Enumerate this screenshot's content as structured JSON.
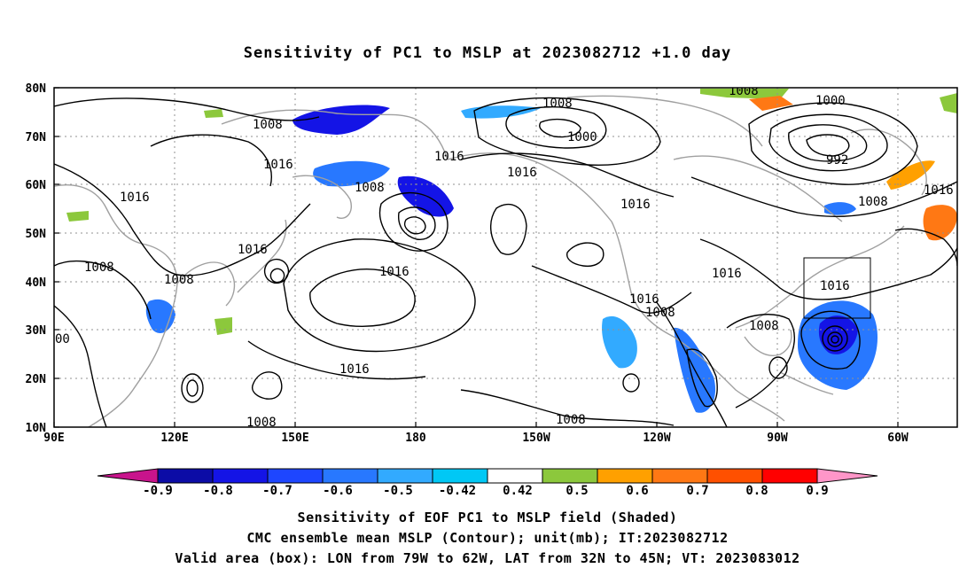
{
  "title": "Sensitivity of PC1 to MSLP at 2023082712 +1.0 day",
  "map": {
    "lat_labels": [
      "80N",
      "70N",
      "60N",
      "50N",
      "40N",
      "30N",
      "20N",
      "10N"
    ],
    "lon_labels": [
      "90E",
      "120E",
      "150E",
      "180",
      "150W",
      "120W",
      "90W",
      "60W"
    ],
    "contour_labels": [
      {
        "text": "1008",
        "pos": "nw-pacific"
      },
      {
        "text": "1016",
        "pos": "kamchatka"
      },
      {
        "text": "1008",
        "pos": "okhotsk"
      },
      {
        "text": "1016",
        "pos": "siberia"
      },
      {
        "text": "1016",
        "pos": "china-north"
      },
      {
        "text": "1008",
        "pos": "china"
      },
      {
        "text": "1016",
        "pos": "japan"
      },
      {
        "text": "1008",
        "pos": "south-china"
      },
      {
        "text": "00",
        "pos": "west-edge"
      },
      {
        "text": "1016",
        "pos": "subtropical-high"
      },
      {
        "text": "1008",
        "pos": "west-pacific-south"
      },
      {
        "text": "1016",
        "pos": "bering"
      },
      {
        "text": "1016",
        "pos": "gulf-alaska"
      },
      {
        "text": "1008",
        "pos": "arctic"
      },
      {
        "text": "1000",
        "pos": "arctic-low"
      },
      {
        "text": "1016",
        "pos": "canada"
      },
      {
        "text": "1016",
        "pos": "baja"
      },
      {
        "text": "1008",
        "pos": "mexico"
      },
      {
        "text": "1016",
        "pos": "us-east"
      },
      {
        "text": "1008",
        "pos": "east-pacific-south"
      },
      {
        "text": "1008",
        "pos": "gulf-mexico"
      },
      {
        "text": "1016",
        "pos": "box"
      },
      {
        "text": "1008",
        "pos": "greenland"
      },
      {
        "text": "1000",
        "pos": "greenland-low"
      },
      {
        "text": "992",
        "pos": "greenland-center"
      },
      {
        "text": "1008",
        "pos": "labrador"
      },
      {
        "text": "1016",
        "pos": "north-atlantic"
      }
    ],
    "box": {
      "lon_min": -79,
      "lon_max": -62,
      "lat_min": 32,
      "lat_max": 45
    }
  },
  "colorbar": {
    "tick_labels": [
      "-0.9",
      "-0.8",
      "-0.7",
      "-0.6",
      "-0.5",
      "-0.42",
      "0.42",
      "0.5",
      "0.6",
      "0.7",
      "0.8",
      "0.9"
    ],
    "colors": [
      "#0c0ca6",
      "#1414e6",
      "#1e46ff",
      "#2878ff",
      "#32aaff",
      "#00c8f5",
      "#ffffff",
      "#8cc83c",
      "#ffa000",
      "#ff7814",
      "#ff5000",
      "#ff0000"
    ],
    "under_color": "#c8148c",
    "over_color": "#ff96c8"
  },
  "captions": {
    "line1": "Sensitivity of EOF PC1 to MSLP field (Shaded)",
    "line2": "CMC ensemble mean MSLP (Contour); unit(mb); IT:2023082712",
    "line3": "Valid area (box): LON from 79W to 62W, LAT from 32N to 45N; VT: 2023083012"
  }
}
